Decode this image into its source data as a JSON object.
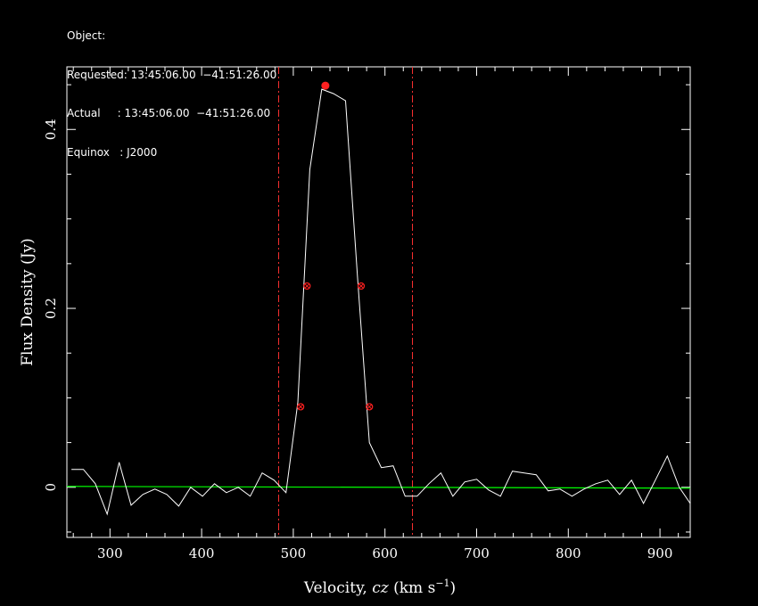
{
  "header": {
    "object_line": "Object:",
    "requested_line": "Requested: 13:45:06.00  −41:51:26.00",
    "actual_line": "Actual     : 13:45:06.00  −41:51:26.00",
    "equinox_line": "Equinox   : J2000"
  },
  "chart_data": {
    "type": "line",
    "xlabel_prefix": "Velocity, ",
    "xlabel_italic": "cz",
    "xlabel_unit": " (km s",
    "xlabel_exp": "−1",
    "xlabel_close": ")",
    "ylabel": "Flux Density (Jy)",
    "xlim": [
      253,
      933
    ],
    "ylim": [
      -0.056,
      0.47
    ],
    "x_ticks": [
      300,
      400,
      500,
      600,
      700,
      800,
      900
    ],
    "x_tick_labels": [
      "300",
      "400",
      "500",
      "600",
      "700",
      "800",
      "900"
    ],
    "y_ticks": [
      0,
      0.2,
      0.4
    ],
    "y_tick_labels": [
      "0",
      "0.2",
      "0.4"
    ],
    "grid": false,
    "colors": {
      "spectrum": "#ffffff",
      "baseline": "#00ff00",
      "markers": "#ff2020",
      "window": "#ff3030",
      "axes": "#ffffff"
    },
    "spectrum": {
      "x": [
        258,
        271,
        284,
        297,
        310,
        323,
        336,
        349,
        362,
        375,
        388,
        401,
        414,
        427,
        440,
        453,
        466,
        479,
        492,
        505,
        518,
        531,
        544,
        557,
        570,
        583,
        596,
        609,
        622,
        635,
        648,
        661,
        674,
        687,
        700,
        713,
        726,
        739,
        752,
        765,
        778,
        791,
        804,
        817,
        830,
        843,
        856,
        869,
        882,
        895,
        908,
        921,
        933
      ],
      "y": [
        0.02,
        0.02,
        0.004,
        -0.03,
        0.028,
        -0.02,
        -0.008,
        -0.002,
        -0.008,
        -0.021,
        0.0,
        -0.01,
        0.004,
        -0.006,
        0.0,
        -0.01,
        0.016,
        0.008,
        -0.006,
        0.095,
        0.355,
        0.445,
        0.44,
        0.432,
        0.235,
        0.05,
        0.022,
        0.024,
        -0.01,
        -0.01,
        0.004,
        0.016,
        -0.01,
        0.006,
        0.009,
        -0.003,
        -0.01,
        0.018,
        0.016,
        0.014,
        -0.004,
        -0.002,
        -0.01,
        -0.002,
        0.004,
        0.008,
        -0.008,
        0.008,
        -0.018,
        0.008,
        0.035,
        0.0,
        -0.018
      ]
    },
    "baseline": {
      "x": [
        253,
        933
      ],
      "y": [
        0.001,
        -0.001
      ]
    },
    "peak_marker": {
      "x": 535,
      "y": 0.449
    },
    "width_markers": [
      {
        "x": 508,
        "y": 0.09
      },
      {
        "x": 515,
        "y": 0.225
      },
      {
        "x": 574,
        "y": 0.225
      },
      {
        "x": 583,
        "y": 0.09
      }
    ],
    "window_lines_x": [
      484,
      630
    ]
  }
}
